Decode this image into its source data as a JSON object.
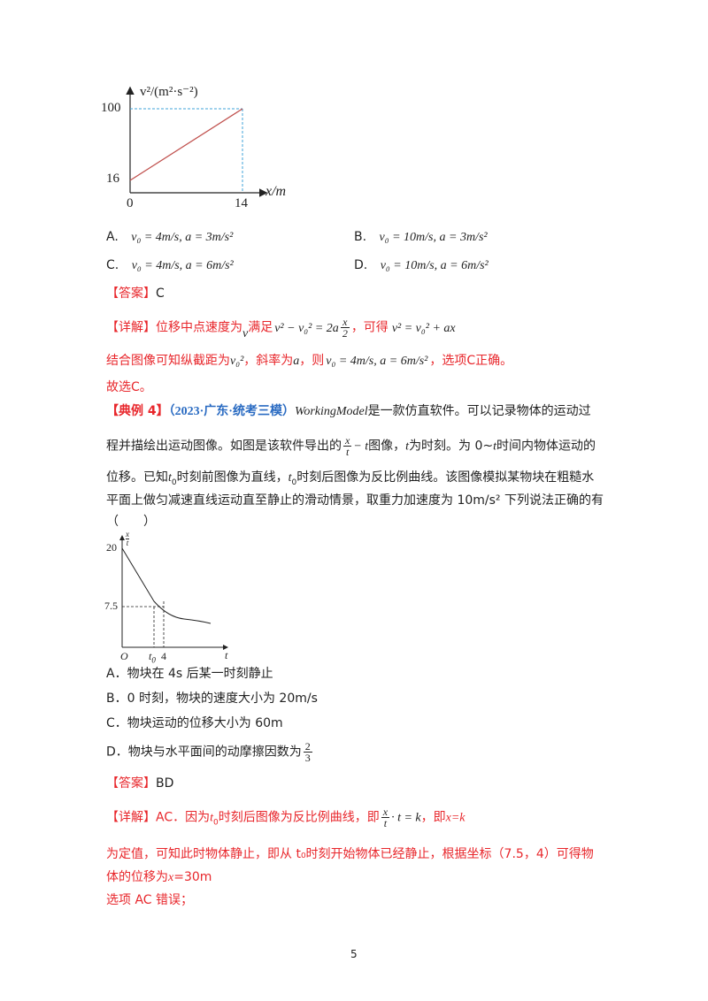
{
  "graph1": {
    "y_axis_label": "v²/(m²·s⁻²)",
    "x_axis_label": "x/m",
    "tick_y_top": "100",
    "tick_y_bottom": "16",
    "tick_origin": "0",
    "tick_x": "14",
    "line_color": "#c0504d",
    "guide_color": "#3fa3d8"
  },
  "options1": {
    "a_letter": "A.",
    "a_text": "v₀ = 4m/s, a = 3m/s²",
    "b_letter": "B.",
    "b_text": "v₀ = 10m/s, a = 3m/s²",
    "c_letter": "C.",
    "c_text": "v₀ = 4m/s, a = 6m/s²",
    "d_letter": "D.",
    "d_text": "v₀ = 10m/s, a = 6m/s²"
  },
  "answer1": {
    "label": "【答案】",
    "value": "C"
  },
  "detail1": {
    "label": "【详解】",
    "t1": "位移中点速度为",
    "t2": "v",
    "t3": "满足",
    "formula1": "v² − v₀² = 2a",
    "frac_num": "x",
    "frac_den": "2",
    "t4": "，可得",
    "formula2": "v² = v₀² + ax",
    "line2_a": "结合图像可知纵截距为",
    "line2_v0sq": "v₀²",
    "line2_b": "，斜率为",
    "line2_a_var": "a",
    "line2_c": "，则",
    "line2_formula": "v₀ = 4m/s, a = 6m/s²",
    "line2_d": "，选项C正确。",
    "conclusion": "故选C。"
  },
  "example4": {
    "label": "【典例 4】",
    "source": "（2023·广东·统考三模）",
    "software": "WorkingModel",
    "p1_a": "是一款仿直软件。可以记录物体的运动过",
    "p2_a": "程并描绘出运动图像。如图是该软件导出的",
    "p2_frac_num": "x",
    "p2_frac_den": "t",
    "p2_b": "− t",
    "p2_c": "图像，",
    "p2_t": "t",
    "p2_d": "为时刻。为 0~",
    "p2_t2": "t",
    "p2_e": "时间内物体运动的",
    "p3_a": "位移。已知",
    "p3_t0": "t",
    "p3_t0sub": "0",
    "p3_b": "时刻前图像为直线，",
    "p3_c": "时刻后图像为反比例曲线。该图像模拟某物块在粗糙水",
    "p4": "平面上做匀减速直线运动直至静止的滑动情景，取重力加速度为 10m/s² 下列说法正确的有",
    "p5": "（　　）"
  },
  "graph2": {
    "y_label_num": "x",
    "y_label_den": "t",
    "tick_y_top": "20",
    "tick_y_mid": "7.5",
    "tick_origin": "O",
    "tick_t0": "t",
    "tick_t0_sub": "0",
    "tick_4": "4",
    "x_axis_label": "t"
  },
  "options2": {
    "a": "A．物块在 4s 后某一时刻静止",
    "b": "B．0 时刻，物块的速度大小为 20m/s",
    "c": "C．物块运动的位移大小为 60m",
    "d_text": "D．物块与水平面间的动摩擦因数为",
    "d_num": "2",
    "d_den": "3"
  },
  "answer2": {
    "label": "【答案】",
    "value": "BD"
  },
  "detail2": {
    "label": "【详解】",
    "l1_a": "AC．因为",
    "l1_t0": "t",
    "l1_t0sub": "0",
    "l1_b": "时刻后图像为反比例曲线，即",
    "l1_frac_num": "x",
    "l1_frac_den": "t",
    "l1_c": "· t = k",
    "l1_d": "，即",
    "l1_e": "x=k",
    "l2": "为定值，可知此时物体静止，即从 t₀时刻开始物体已经静止，根据坐标（7.5，4）可得物",
    "l3_a": "体的位移为",
    "l3_b": "x",
    "l3_c": "=30m",
    "l4": "选项 AC 错误；"
  },
  "page_number": "5"
}
